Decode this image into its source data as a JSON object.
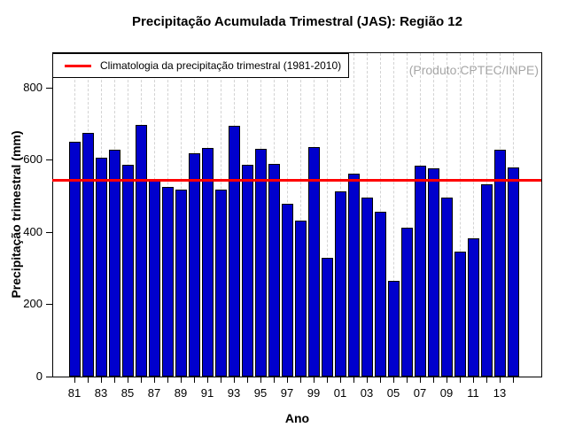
{
  "title": "Precipitação Acumulada Trimestral (JAS): Região 12",
  "annotation": "(Produto:CPTEC/INPE)",
  "legend": {
    "label": "Climatologia da precipitação trimestral (1981-2010)"
  },
  "chart_data": {
    "type": "bar",
    "title": "Precipitação Acumulada Trimestral (JAS): Região 12",
    "xlabel": "Ano",
    "ylabel": "Precipitação trimestral (mm)",
    "categories": [
      "81",
      "82",
      "83",
      "84",
      "85",
      "86",
      "87",
      "88",
      "89",
      "90",
      "91",
      "92",
      "93",
      "94",
      "95",
      "96",
      "97",
      "98",
      "99",
      "00",
      "01",
      "02",
      "03",
      "04",
      "05",
      "06",
      "07",
      "08",
      "09",
      "10",
      "11",
      "12",
      "13",
      "14"
    ],
    "values": [
      650,
      675,
      607,
      628,
      586,
      698,
      548,
      526,
      518,
      618,
      633,
      518,
      695,
      586,
      630,
      590,
      478,
      432,
      635,
      328,
      513,
      562,
      495,
      456,
      266,
      412,
      583,
      576,
      496,
      345,
      383,
      532,
      628,
      578
    ],
    "x_tick_labels_shown": [
      "81",
      "83",
      "85",
      "87",
      "89",
      "91",
      "93",
      "95",
      "97",
      "99",
      "01",
      "03",
      "05",
      "07",
      "09",
      "11",
      "13"
    ],
    "y_ticks": [
      0,
      200,
      400,
      600,
      800
    ],
    "ylim": [
      0,
      898
    ],
    "grid": "vertical-dashed",
    "legend_position": "topleft",
    "climatology_line": {
      "label": "Climatologia da precipitação trimestral (1981-2010)",
      "value": 545
    },
    "colors": {
      "bar_fill": "#0000CD",
      "bar_border": "#000000",
      "climatology": "#FF0000",
      "grid": "#D3D3D3",
      "annotation": "#A6A6A6"
    }
  }
}
